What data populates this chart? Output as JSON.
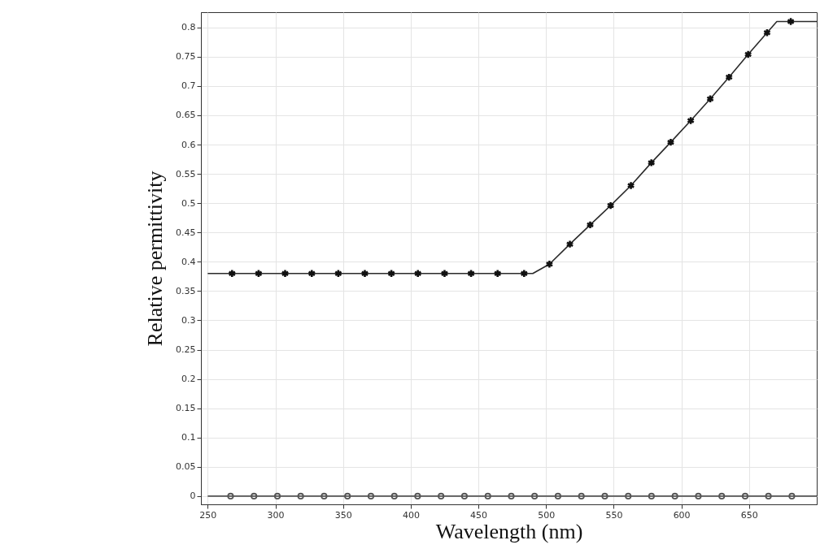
{
  "chart_data": {
    "type": "line",
    "xlabel": "Wavelength (nm)",
    "ylabel": "Relative permittivity",
    "xlim": [
      245,
      700
    ],
    "xticks": [
      250,
      300,
      350,
      400,
      450,
      500,
      550,
      600,
      650
    ],
    "ylim": [
      -0.014,
      0.826
    ],
    "yticks": [
      0,
      0.05,
      0.1,
      0.15,
      0.2,
      0.25,
      0.3,
      0.35,
      0.4,
      0.45,
      0.5,
      0.55,
      0.6,
      0.65,
      0.7,
      0.75,
      0.8
    ],
    "grid": true,
    "series": [
      {
        "marker": "none",
        "color": "#2a2a2a",
        "x": [
          250,
          490.2,
          502.5,
          517.6,
          532.6,
          547.7,
          562.7,
          577.8,
          592.1,
          606.9,
          621.3,
          635.2,
          649.3,
          663.3,
          670.5,
          700
        ],
        "values": [
          0.38,
          0.38,
          0.396,
          0.43,
          0.463,
          0.496,
          0.53,
          0.569,
          0.604,
          0.641,
          0.678,
          0.715,
          0.754,
          0.791,
          0.81,
          0.81
        ]
      },
      {
        "type": "scatter",
        "marker": "cross",
        "color": "#111111",
        "x": [
          268,
          287.6,
          307.2,
          326.9,
          346.5,
          366.1,
          385.7,
          405.3,
          425,
          444.6,
          464.2,
          483.8,
          502.5,
          517.6,
          532.6,
          547.7,
          562.7,
          577.8,
          592.1,
          606.9,
          621.3,
          635.2,
          649.3,
          663.3,
          680.8
        ],
        "values": [
          0.38,
          0.38,
          0.38,
          0.38,
          0.38,
          0.38,
          0.38,
          0.38,
          0.38,
          0.38,
          0.38,
          0.38,
          0.396,
          0.43,
          0.463,
          0.496,
          0.53,
          0.569,
          0.604,
          0.641,
          0.678,
          0.715,
          0.754,
          0.791,
          0.81
        ]
      },
      {
        "marker": "none",
        "color": "#555555",
        "x": [
          250,
          700
        ],
        "values": [
          0,
          0
        ]
      },
      {
        "type": "scatter",
        "marker": "circle",
        "color": "#555555",
        "x": [
          266.9,
          284.2,
          301.5,
          318.7,
          336,
          353.3,
          370.6,
          387.9,
          405.1,
          422.4,
          439.7,
          457,
          474.3,
          491.5,
          508.8,
          526.1,
          543.4,
          560.7,
          577.9,
          595.2,
          612.5,
          629.8,
          647.1,
          664.3,
          681.6
        ],
        "values": [
          0,
          0,
          0,
          0,
          0,
          0,
          0,
          0,
          0,
          0,
          0,
          0,
          0,
          0,
          0,
          0,
          0,
          0,
          0,
          0,
          0,
          0,
          0,
          0,
          0
        ]
      }
    ]
  }
}
